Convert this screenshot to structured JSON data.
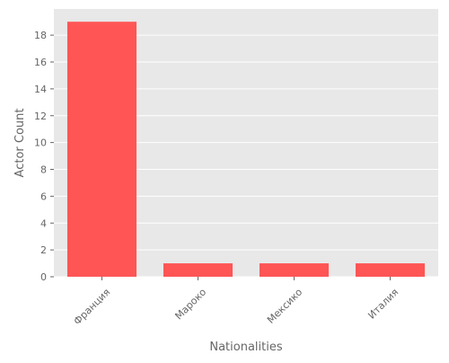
{
  "chart_data": {
    "type": "bar",
    "categories": [
      "Франция",
      "Мароко",
      "Мексико",
      "Италия"
    ],
    "values": [
      19,
      1,
      1,
      1
    ],
    "title": "",
    "xlabel": "Nationalities",
    "ylabel": "Actor Count",
    "ylim": [
      0,
      19.95
    ],
    "yticks": [
      0,
      2,
      4,
      6,
      8,
      10,
      12,
      14,
      16,
      18
    ],
    "grid": true,
    "legend": "none"
  },
  "colors": {
    "bar": "#ff5555",
    "plot_background": "#e8e8e8",
    "grid": "#ffffff",
    "tick_label": "#666666",
    "axis_label": "#666666"
  }
}
